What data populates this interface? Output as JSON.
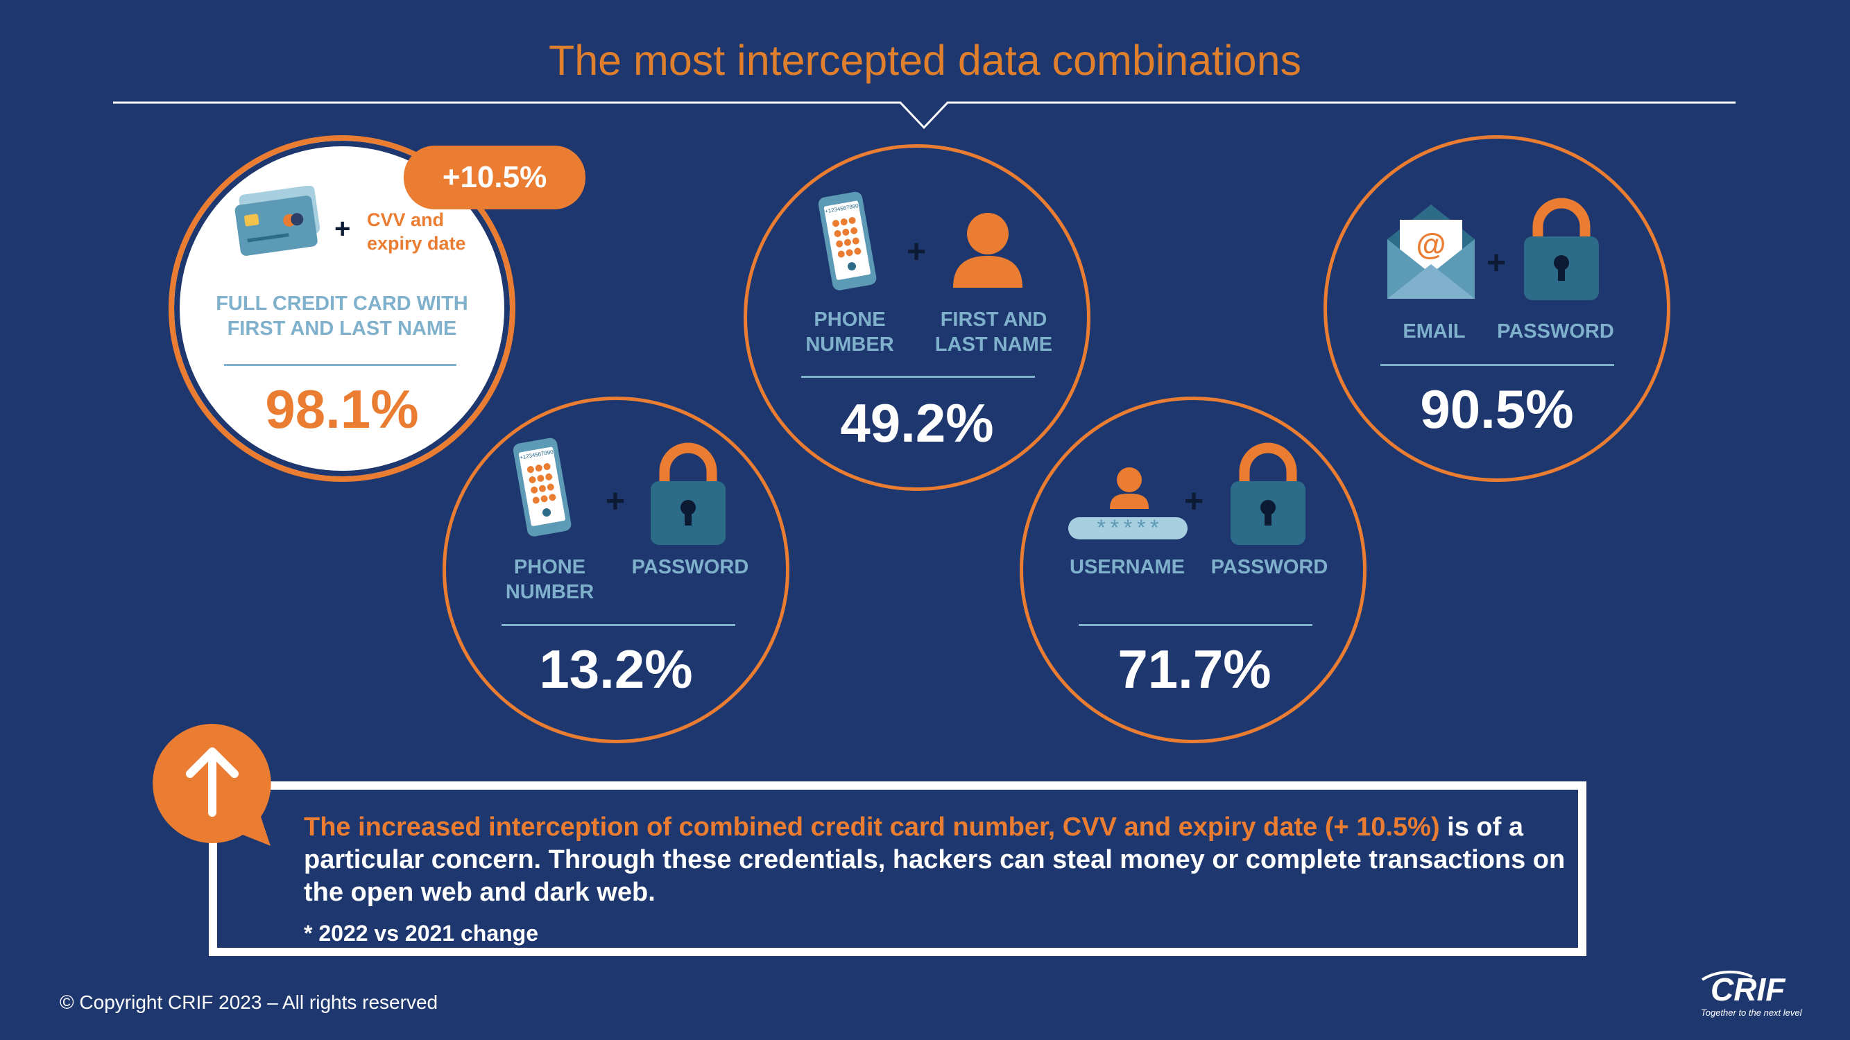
{
  "title": "The most intercepted data combinations",
  "cards": {
    "credit_card": {
      "badge": "+10.5%",
      "extra_label": "CVV and\nexpiry date",
      "label": "FULL CREDIT CARD WITH\nFIRST AND LAST NAME",
      "value": "98.1%",
      "icons": [
        "credit-card-icon",
        "plus-icon"
      ]
    },
    "phone_name": {
      "label_a": "PHONE\nNUMBER",
      "label_b": "FIRST AND\nLAST NAME",
      "value": "49.2%",
      "icons": [
        "smartphone-icon",
        "plus-icon",
        "person-icon"
      ]
    },
    "email_password": {
      "label_a": "EMAIL",
      "label_b": "PASSWORD",
      "value": "90.5%",
      "icons": [
        "envelope-icon",
        "plus-icon",
        "padlock-icon"
      ]
    },
    "phone_password": {
      "label_a": "PHONE\nNUMBER",
      "label_b": "PASSWORD",
      "value": "13.2%",
      "icons": [
        "smartphone-icon",
        "plus-icon",
        "padlock-icon"
      ]
    },
    "username_password": {
      "label_a": "USERNAME",
      "label_b": "PASSWORD",
      "masked_text": "*****",
      "value": "71.7%",
      "icons": [
        "username-icon",
        "plus-icon",
        "padlock-icon"
      ]
    }
  },
  "phone_screen_text": "+1234567890",
  "plus_sign": "+",
  "note": {
    "highlight": "The increased interception of combined credit card number, CVV and expiry date (+ 10.5%)",
    "body": " is of a particular concern. Through these credentials, hackers can steal money or complete transactions on the open web and dark web.",
    "footnote": "* 2022 vs 2021 change",
    "icon": "arrow-up-icon"
  },
  "footer": {
    "copyright": "© Copyright CRIF 2023 – All rights reserved",
    "logo_text": "CRIF",
    "tagline": "Together to the next level"
  },
  "colors": {
    "background": "#1e386f",
    "accent": "#ea7d32",
    "label": "#7fb0cc",
    "icon_teal": "#2c6c89",
    "white": "#ffffff"
  }
}
